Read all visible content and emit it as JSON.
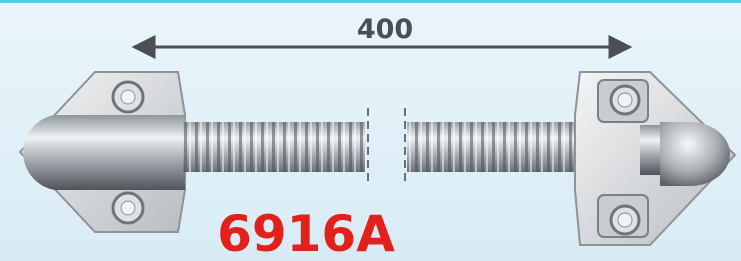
{
  "dimension": {
    "label": "400"
  },
  "product": {
    "code": "6916A"
  }
}
